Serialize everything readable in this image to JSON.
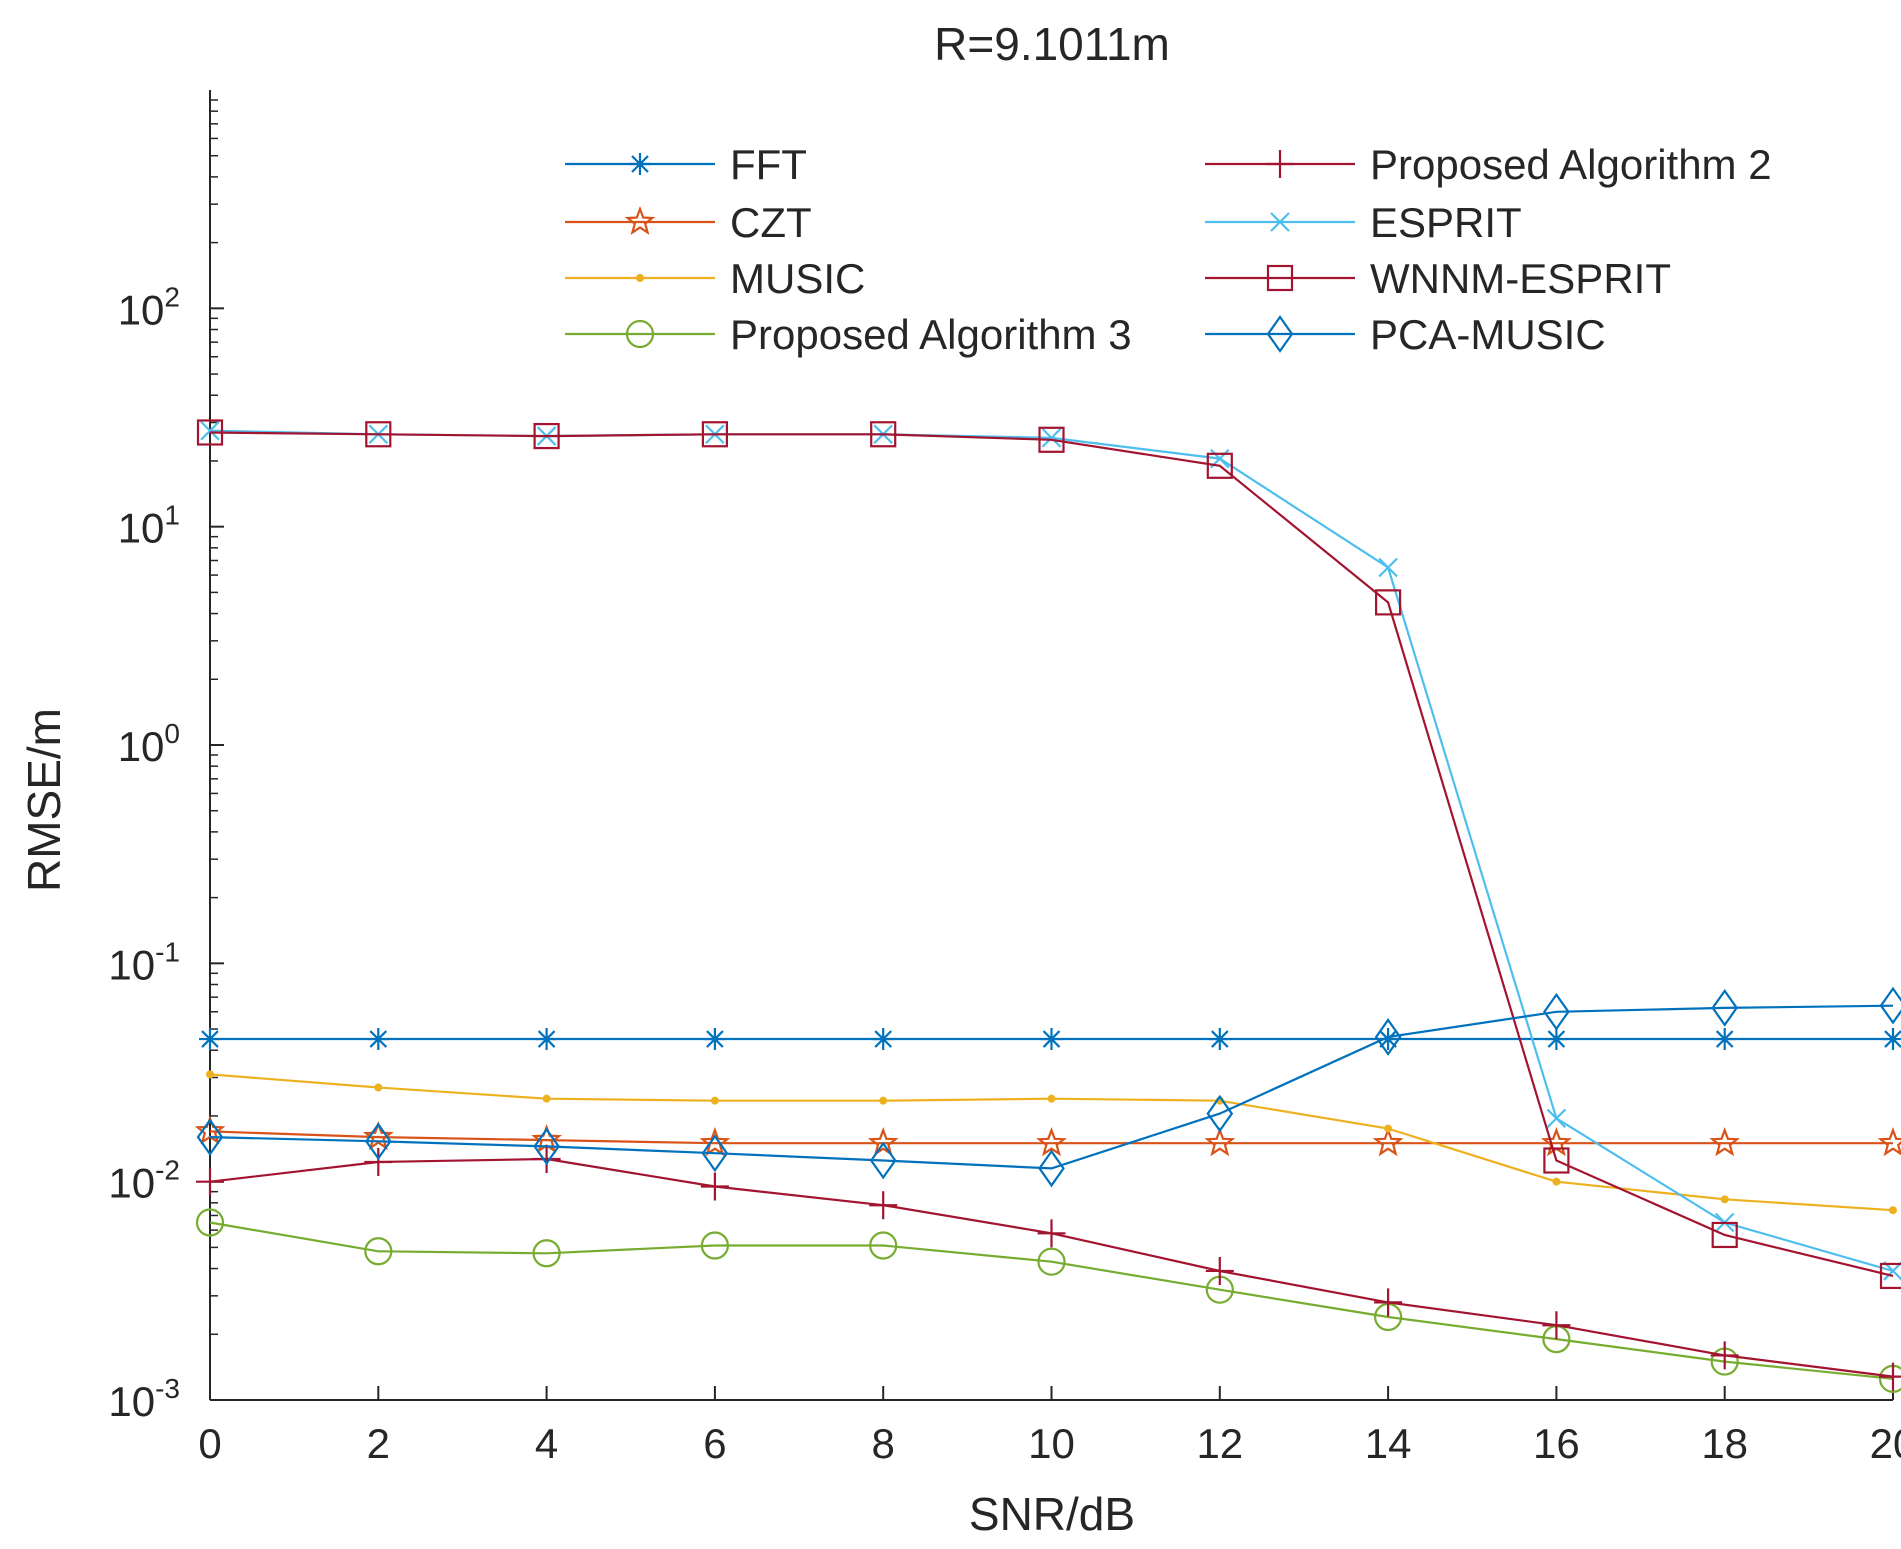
{
  "chart_data": {
    "type": "line",
    "title": "R=9.1011m",
    "xlabel": "SNR/dB",
    "ylabel": "RMSE/m",
    "yscale": "log",
    "xlim": [
      0,
      20
    ],
    "ylim": [
      0.001,
      1000
    ],
    "x": [
      0,
      2,
      4,
      6,
      8,
      10,
      12,
      14,
      16,
      18,
      20
    ],
    "xticks": [
      0,
      2,
      4,
      6,
      8,
      10,
      12,
      14,
      16,
      18,
      20
    ],
    "xtick_labels": [
      "0",
      "2",
      "4",
      "6",
      "8",
      "10",
      "12",
      "14",
      "16",
      "18",
      "20"
    ],
    "yticks": [
      {
        "value": 0.001,
        "base": "10",
        "exp": "-3"
      },
      {
        "value": 0.01,
        "base": "10",
        "exp": "-2"
      },
      {
        "value": 0.1,
        "base": "10",
        "exp": "-1"
      },
      {
        "value": 1,
        "base": "10",
        "exp": "0"
      },
      {
        "value": 10,
        "base": "10",
        "exp": "1"
      },
      {
        "value": 100,
        "base": "10",
        "exp": "2"
      }
    ],
    "legend_position": "top",
    "series": [
      {
        "name": "FFT",
        "color": "#0072BD",
        "marker": "asterisk",
        "values": [
          0.045,
          0.045,
          0.045,
          0.045,
          0.045,
          0.045,
          0.045,
          0.045,
          0.045,
          0.045,
          0.045
        ]
      },
      {
        "name": "CZT",
        "color": "#D95319",
        "marker": "pentagram",
        "values": [
          0.017,
          0.016,
          0.0155,
          0.015,
          0.015,
          0.015,
          0.015,
          0.015,
          0.015,
          0.015,
          0.015
        ]
      },
      {
        "name": "MUSIC",
        "color": "#EDB120",
        "marker": "point",
        "values": [
          0.031,
          0.027,
          0.024,
          0.0235,
          0.0235,
          0.024,
          0.0235,
          0.0175,
          0.01,
          0.0083,
          0.0074
        ]
      },
      {
        "name": "Proposed Algorithm 3",
        "color": "#77AC30",
        "marker": "circle",
        "values": [
          0.0065,
          0.0048,
          0.0047,
          0.0051,
          0.0051,
          0.0043,
          0.0032,
          0.0024,
          0.0019,
          0.0015,
          0.00125
        ]
      },
      {
        "name": "Proposed Algorithm 2",
        "color": "#A2142F",
        "marker": "plus",
        "values": [
          0.01,
          0.0123,
          0.0127,
          0.0095,
          0.0078,
          0.0058,
          0.0039,
          0.0028,
          0.0022,
          0.0016,
          0.00128
        ]
      },
      {
        "name": "ESPRIT",
        "color": "#4DBEEE",
        "marker": "cross",
        "values": [
          27.5,
          26.5,
          26,
          26.5,
          26.5,
          25.5,
          20.5,
          6.5,
          0.0195,
          0.0065,
          0.0039
        ]
      },
      {
        "name": "WNNM-ESPRIT",
        "color": "#A2142F",
        "marker": "square",
        "values": [
          27,
          26.5,
          26,
          26.5,
          26.5,
          25,
          19,
          4.5,
          0.0125,
          0.0057,
          0.0037
        ]
      },
      {
        "name": "PCA-MUSIC",
        "color": "#0072BD",
        "marker": "diamond",
        "values": [
          0.016,
          0.0153,
          0.0145,
          0.0135,
          0.0125,
          0.0115,
          0.0205,
          0.046,
          0.06,
          0.0625,
          0.064
        ]
      }
    ]
  }
}
